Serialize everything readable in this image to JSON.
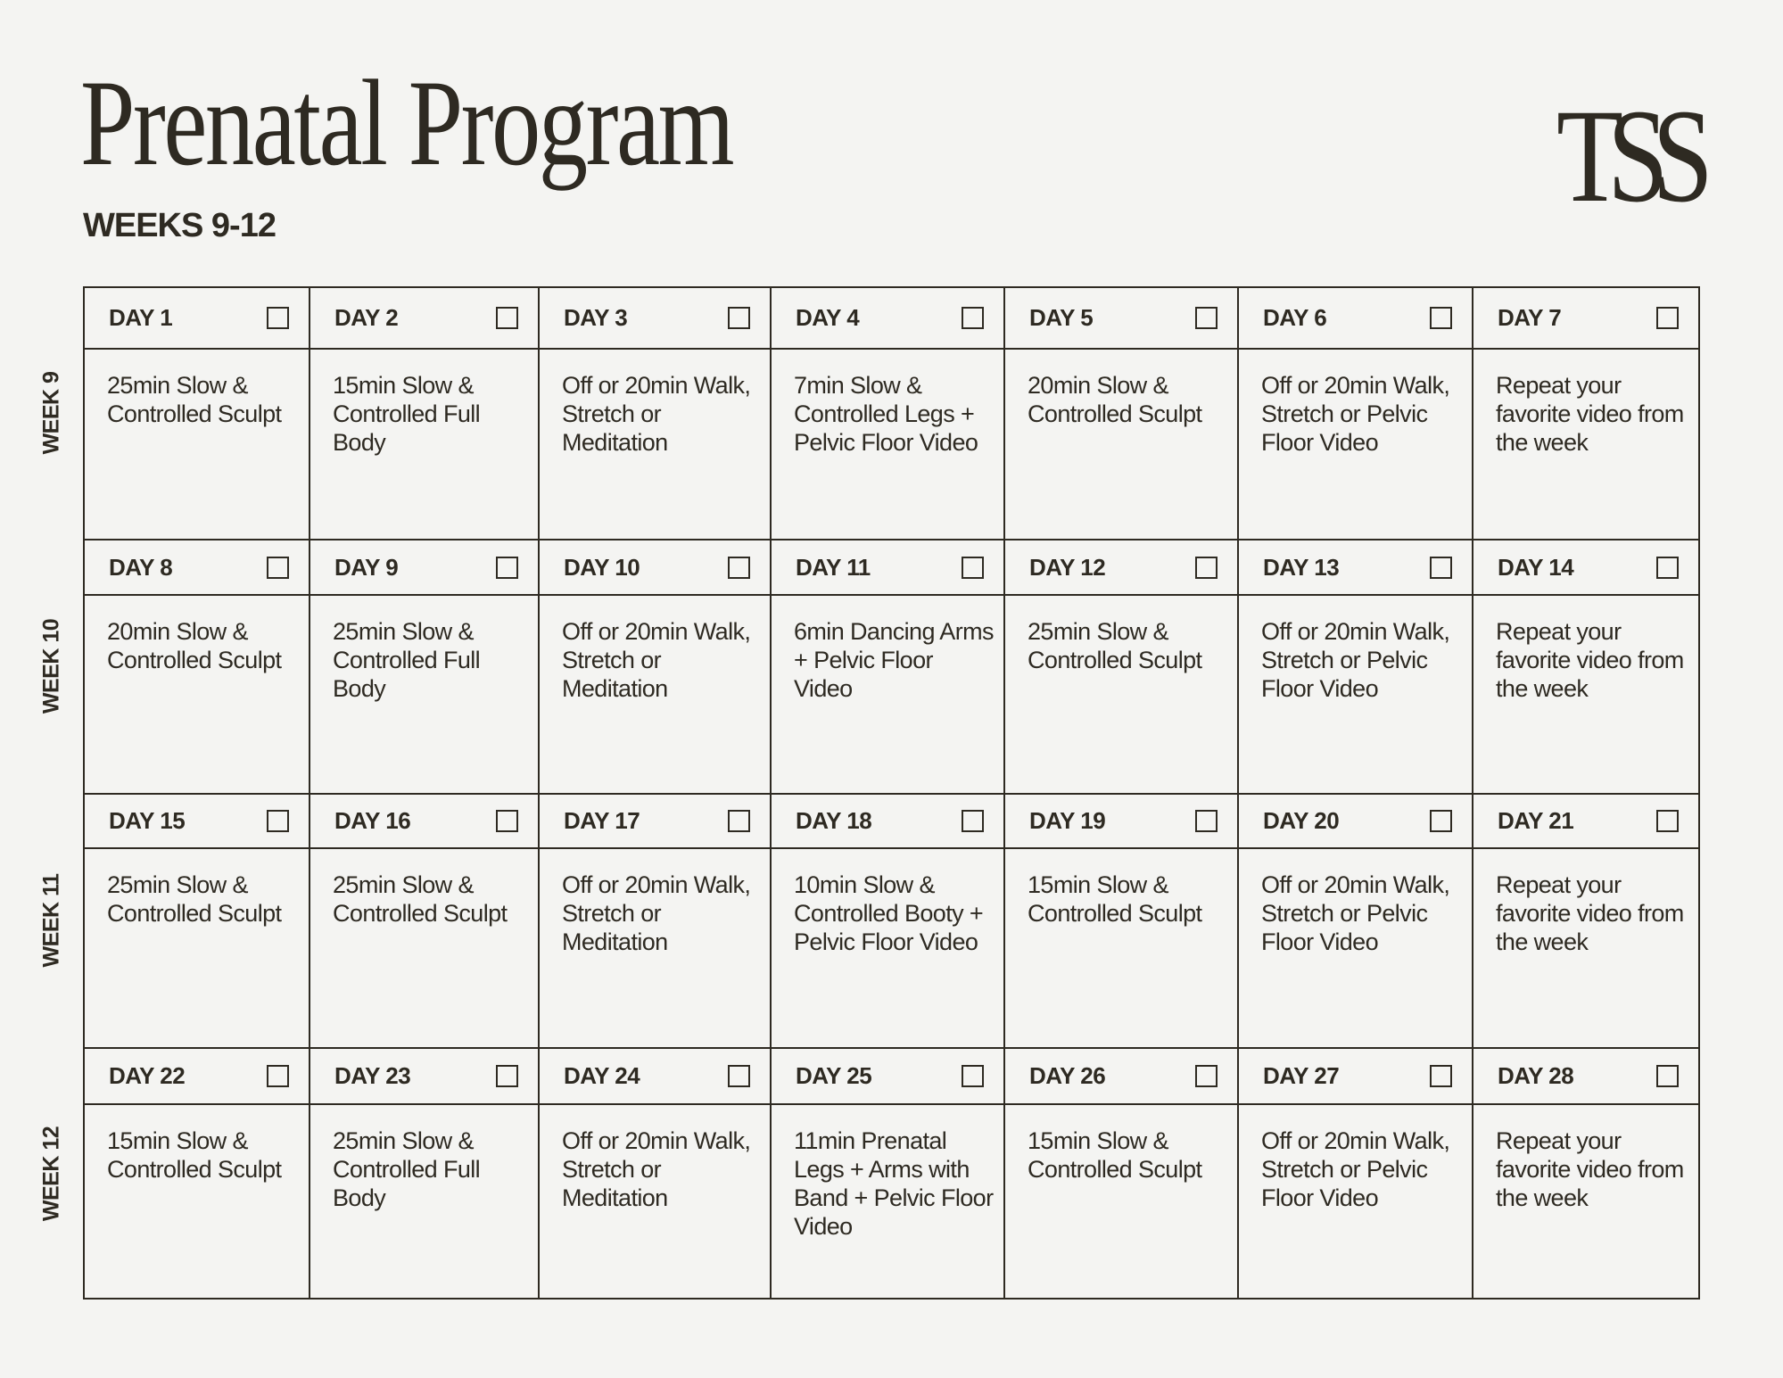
{
  "title": "Prenatal Program",
  "subtitle": "WEEKS 9-12",
  "logo": "TSS",
  "colors": {
    "text": "#2e2a22",
    "background": "#f4f4f2"
  },
  "weeks": [
    {
      "label": "WEEK 9",
      "days": [
        {
          "day": "DAY 1",
          "workout": "25min Slow & Controlled Sculpt",
          "checked": false
        },
        {
          "day": "DAY 2",
          "workout": "15min Slow & Controlled Full Body",
          "checked": false
        },
        {
          "day": "DAY 3",
          "workout": "Off or 20min Walk, Stretch or Meditation",
          "checked": false
        },
        {
          "day": "DAY 4",
          "workout": "7min Slow & Controlled Legs + Pelvic Floor Video",
          "checked": false
        },
        {
          "day": "DAY 5",
          "workout": "20min Slow & Controlled Sculpt",
          "checked": false
        },
        {
          "day": "DAY 6",
          "workout": "Off or 20min Walk, Stretch or Pelvic Floor Video",
          "checked": false
        },
        {
          "day": "DAY 7",
          "workout": "Repeat your favorite video from the week",
          "checked": false
        }
      ]
    },
    {
      "label": "WEEK 10",
      "days": [
        {
          "day": "DAY 8",
          "workout": "20min Slow & Controlled Sculpt",
          "checked": false
        },
        {
          "day": "DAY 9",
          "workout": "25min Slow & Controlled Full Body",
          "checked": false
        },
        {
          "day": "DAY 10",
          "workout": "Off or 20min Walk, Stretch or Meditation",
          "checked": false
        },
        {
          "day": "DAY 11",
          "workout": "6min Dancing Arms + Pelvic Floor Video",
          "checked": false
        },
        {
          "day": "DAY 12",
          "workout": "25min Slow & Controlled Sculpt",
          "checked": false
        },
        {
          "day": "DAY 13",
          "workout": "Off or 20min Walk, Stretch or Pelvic Floor Video",
          "checked": false
        },
        {
          "day": "DAY 14",
          "workout": "Repeat your favorite video from the week",
          "checked": false
        }
      ]
    },
    {
      "label": "WEEK 11",
      "days": [
        {
          "day": "DAY 15",
          "workout": "25min Slow & Controlled Sculpt",
          "checked": false
        },
        {
          "day": "DAY 16",
          "workout": "25min Slow & Controlled Sculpt",
          "checked": false
        },
        {
          "day": "DAY 17",
          "workout": "Off or 20min Walk, Stretch or Meditation",
          "checked": false
        },
        {
          "day": "DAY 18",
          "workout": "10min Slow & Controlled Booty + Pelvic Floor Video",
          "checked": false
        },
        {
          "day": "DAY 19",
          "workout": "15min Slow & Controlled Sculpt",
          "checked": false
        },
        {
          "day": "DAY 20",
          "workout": "Off or 20min Walk, Stretch or Pelvic Floor Video",
          "checked": false
        },
        {
          "day": "DAY 21",
          "workout": "Repeat your favorite video from the week",
          "checked": false
        }
      ]
    },
    {
      "label": "WEEK 12",
      "days": [
        {
          "day": "DAY 22",
          "workout": "15min Slow & Controlled Sculpt",
          "checked": false
        },
        {
          "day": "DAY 23",
          "workout": "25min Slow & Controlled Full Body",
          "checked": false
        },
        {
          "day": "DAY 24",
          "workout": "Off or 20min Walk, Stretch or Meditation",
          "checked": false
        },
        {
          "day": "DAY 25",
          "workout": "11min Prenatal Legs + Arms with Band + Pelvic Floor Video",
          "checked": false
        },
        {
          "day": "DAY 26",
          "workout": "15min Slow & Controlled Sculpt",
          "checked": false
        },
        {
          "day": "DAY 27",
          "workout": "Off or 20min Walk, Stretch or Pelvic Floor Video",
          "checked": false
        },
        {
          "day": "DAY 28",
          "workout": "Repeat your favorite video from the week",
          "checked": false
        }
      ]
    }
  ]
}
